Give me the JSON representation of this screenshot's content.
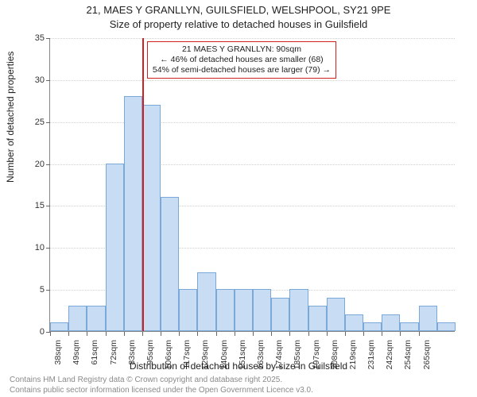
{
  "title_line1": "21, MAES Y GRANLLYN, GUILSFIELD, WELSHPOOL, SY21 9PE",
  "title_line2": "Size of property relative to detached houses in Guilsfield",
  "ylabel": "Number of detached properties",
  "xlabel": "Distribution of detached houses by size in Guilsfield",
  "footer_line1": "Contains HM Land Registry data © Crown copyright and database right 2025.",
  "footer_line2": "Contains public sector information licensed under the Open Government Licence v3.0.",
  "annotation_line1": "21 MAES Y GRANLLYN: 90sqm",
  "annotation_line2": "← 46% of detached houses are smaller (68)",
  "annotation_line3": "54% of semi-detached houses are larger (79) →",
  "chart": {
    "type": "histogram",
    "ylim": [
      0,
      35
    ],
    "ytick_step": 5,
    "xlabels": [
      "38sqm",
      "49sqm",
      "61sqm",
      "72sqm",
      "83sqm",
      "95sqm",
      "106sqm",
      "117sqm",
      "129sqm",
      "140sqm",
      "151sqm",
      "163sqm",
      "174sqm",
      "185sqm",
      "197sqm",
      "208sqm",
      "219sqm",
      "231sqm",
      "242sqm",
      "254sqm",
      "265sqm"
    ],
    "values": [
      1,
      3,
      3,
      20,
      28,
      27,
      16,
      5,
      7,
      5,
      5,
      5,
      4,
      5,
      3,
      4,
      2,
      1,
      2,
      1,
      3,
      1
    ],
    "bar_fill": "#c8ddf4",
    "bar_stroke": "#7aa8d8",
    "marker_bar_index": 5,
    "marker_color": "#d21f1f",
    "background": "#ffffff",
    "grid_color": "#cfcfcf",
    "axis_color": "#888888",
    "font_family": "Arial",
    "title_fontsize": 13,
    "label_fontsize": 12,
    "tick_fontsize": 11
  }
}
